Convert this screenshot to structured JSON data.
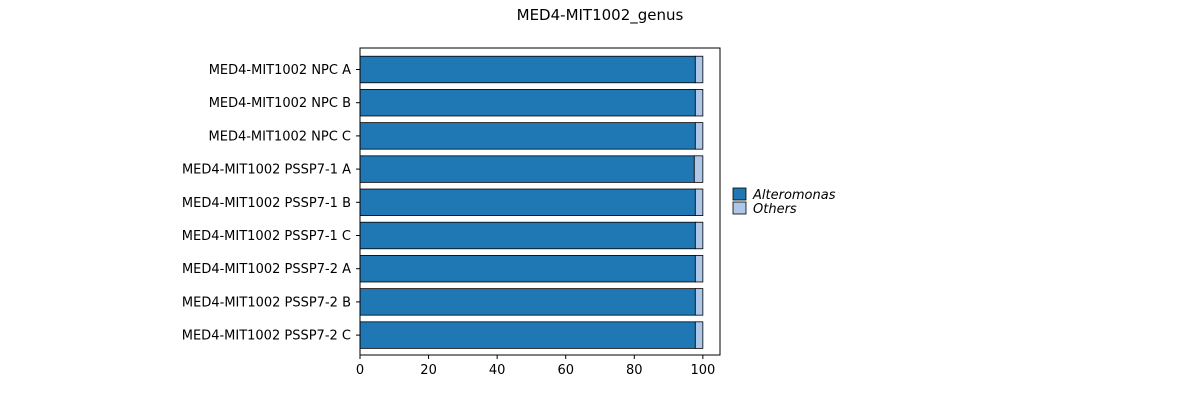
{
  "chart_data": {
    "type": "bar",
    "orientation": "horizontal",
    "stacked": true,
    "title": "MED4-MIT1002_genus",
    "xlabel": "",
    "ylabel": "",
    "xlim": [
      0,
      105
    ],
    "x_ticks": [
      0,
      20,
      40,
      60,
      80,
      100
    ],
    "grid": false,
    "legend_position": "right",
    "categories": [
      "MED4-MIT1002 NPC A",
      "MED4-MIT1002 NPC B",
      "MED4-MIT1002 NPC C",
      "MED4-MIT1002 PSSP7-1 A",
      "MED4-MIT1002 PSSP7-1 B",
      "MED4-MIT1002 PSSP7-1 C",
      "MED4-MIT1002 PSSP7-2 A",
      "MED4-MIT1002 PSSP7-2 B",
      "MED4-MIT1002 PSSP7-2 C"
    ],
    "series": [
      {
        "name": "Alteromonas",
        "color": "#1f77b4",
        "values": [
          97.8,
          97.8,
          97.8,
          97.5,
          97.8,
          97.8,
          97.8,
          97.8,
          97.8
        ]
      },
      {
        "name": "Others",
        "color": "#aec7e8",
        "values": [
          2.2,
          2.2,
          2.2,
          2.5,
          2.2,
          2.2,
          2.2,
          2.2,
          2.2
        ]
      }
    ]
  }
}
